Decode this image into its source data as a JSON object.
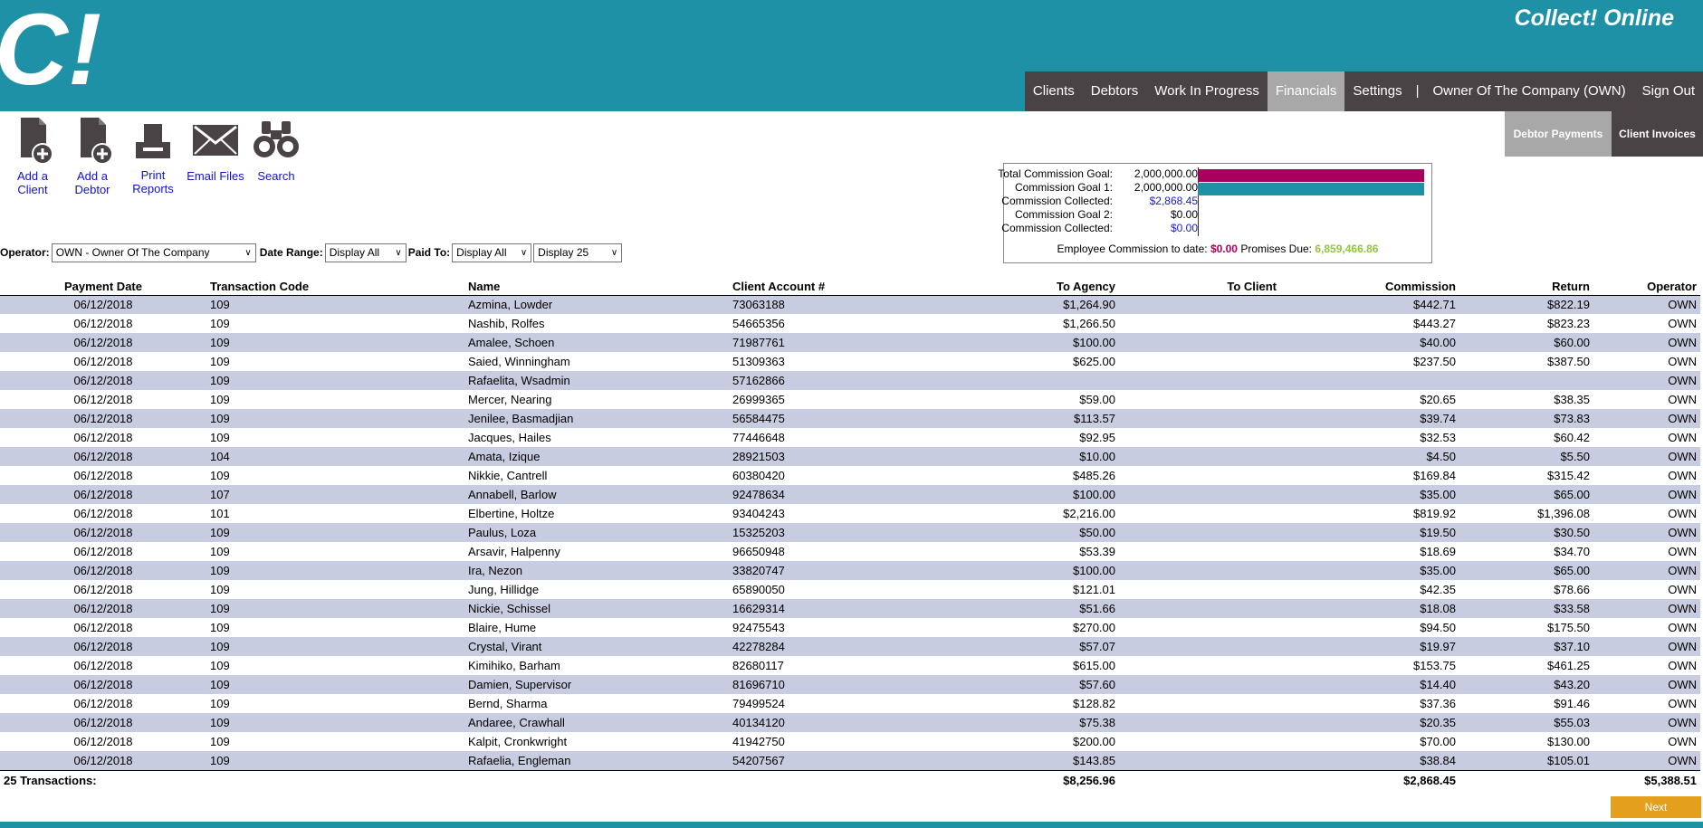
{
  "header": {
    "brand": "Collect! Online",
    "nav": [
      {
        "label": "Clients"
      },
      {
        "label": "Debtors"
      },
      {
        "label": "Work In Progress"
      },
      {
        "label": "Financials"
      },
      {
        "label": "Settings"
      },
      {
        "label": "|"
      },
      {
        "label": "Owner Of The Company (OWN)"
      },
      {
        "label": "Sign Out"
      }
    ],
    "active_nav": "Financials",
    "colors": {
      "brand": "#1f91a7",
      "nav_bg": "#4a4345",
      "active": "#a8a8a8"
    }
  },
  "subnav": {
    "debtor_payments": "Debtor Payments",
    "client_invoices": "Client Invoices"
  },
  "toolbar": {
    "add_client": "Add a Client",
    "add_debtor": "Add a Debtor",
    "print_reports": "Print Reports",
    "email_files": "Email Files",
    "search": "Search",
    "icons": [
      "document-add-icon",
      "document-add-icon",
      "printer-icon",
      "envelope-icon",
      "binoculars-icon"
    ]
  },
  "commission": {
    "total_goal_label": "Total Commission Goal:",
    "total_goal_value": "2,000,000.00",
    "goal1_label": "Commission Goal 1:",
    "goal1_value": "2,000,000.00",
    "collected1_label": "Commission Collected:",
    "collected1_value": "$2,868.45",
    "goal2_label": "Commission Goal 2:",
    "goal2_value": "$0.00",
    "collected2_label": "Commission Collected:",
    "collected2_value": "$0.00",
    "employee_label": "Employee Commission to date:",
    "employee_value": "$0.00",
    "promises_label": "Promises Due:",
    "promises_value": "6,859,466.86",
    "bar_colors": {
      "total": "#a8005c",
      "goal1": "#1f91a7"
    }
  },
  "filters": {
    "operator_label": "Operator:",
    "operator_value": "OWN - Owner Of The Company",
    "date_range_label": "Date Range:",
    "date_range_value": "Display All",
    "paid_to_label": "Paid To:",
    "paid_to_value": "Display All",
    "display_value": "Display 25"
  },
  "table": {
    "headers": [
      "Payment Date",
      "Transaction Code",
      "Name",
      "Client Account #",
      "To Agency",
      "To Client",
      "Commission",
      "Return",
      "Operator"
    ],
    "rows": [
      [
        "06/12/2018",
        "109",
        "Azmina, Lowder",
        "73063188",
        "$1,264.90",
        "",
        "$442.71",
        "$822.19",
        "OWN"
      ],
      [
        "06/12/2018",
        "109",
        "Nashib, Rolfes",
        "54665356",
        "$1,266.50",
        "",
        "$443.27",
        "$823.23",
        "OWN"
      ],
      [
        "06/12/2018",
        "109",
        "Amalee, Schoen",
        "71987761",
        "$100.00",
        "",
        "$40.00",
        "$60.00",
        "OWN"
      ],
      [
        "06/12/2018",
        "109",
        "Saied, Winningham",
        "51309363",
        "$625.00",
        "",
        "$237.50",
        "$387.50",
        "OWN"
      ],
      [
        "06/12/2018",
        "109",
        "Rafaelita, Wsadmin",
        "57162866",
        "",
        "",
        "",
        "",
        "OWN"
      ],
      [
        "06/12/2018",
        "109",
        "Mercer, Nearing",
        "26999365",
        "$59.00",
        "",
        "$20.65",
        "$38.35",
        "OWN"
      ],
      [
        "06/12/2018",
        "109",
        "Jenilee, Basmadjian",
        "56584475",
        "$113.57",
        "",
        "$39.74",
        "$73.83",
        "OWN"
      ],
      [
        "06/12/2018",
        "109",
        "Jacques, Hailes",
        "77446648",
        "$92.95",
        "",
        "$32.53",
        "$60.42",
        "OWN"
      ],
      [
        "06/12/2018",
        "104",
        "Amata, Izique",
        "28921503",
        "$10.00",
        "",
        "$4.50",
        "$5.50",
        "OWN"
      ],
      [
        "06/12/2018",
        "109",
        "Nikkie, Cantrell",
        "60380420",
        "$485.26",
        "",
        "$169.84",
        "$315.42",
        "OWN"
      ],
      [
        "06/12/2018",
        "107",
        "Annabell, Barlow",
        "92478634",
        "$100.00",
        "",
        "$35.00",
        "$65.00",
        "OWN"
      ],
      [
        "06/12/2018",
        "101",
        "Elbertine, Holtze",
        "93404243",
        "$2,216.00",
        "",
        "$819.92",
        "$1,396.08",
        "OWN"
      ],
      [
        "06/12/2018",
        "109",
        "Paulus, Loza",
        "15325203",
        "$50.00",
        "",
        "$19.50",
        "$30.50",
        "OWN"
      ],
      [
        "06/12/2018",
        "109",
        "Arsavir, Halpenny",
        "96650948",
        "$53.39",
        "",
        "$18.69",
        "$34.70",
        "OWN"
      ],
      [
        "06/12/2018",
        "109",
        "Ira, Nezon",
        "33820747",
        "$100.00",
        "",
        "$35.00",
        "$65.00",
        "OWN"
      ],
      [
        "06/12/2018",
        "109",
        "Jung, Hillidge",
        "65890050",
        "$121.01",
        "",
        "$42.35",
        "$78.66",
        "OWN"
      ],
      [
        "06/12/2018",
        "109",
        "Nickie, Schissel",
        "16629314",
        "$51.66",
        "",
        "$18.08",
        "$33.58",
        "OWN"
      ],
      [
        "06/12/2018",
        "109",
        "Blaire, Hume",
        "92475543",
        "$270.00",
        "",
        "$94.50",
        "$175.50",
        "OWN"
      ],
      [
        "06/12/2018",
        "109",
        "Crystal, Virant",
        "42278284",
        "$57.07",
        "",
        "$19.97",
        "$37.10",
        "OWN"
      ],
      [
        "06/12/2018",
        "109",
        "Kimihiko, Barham",
        "82680117",
        "$615.00",
        "",
        "$153.75",
        "$461.25",
        "OWN"
      ],
      [
        "06/12/2018",
        "109",
        "Damien, Supervisor",
        "81696710",
        "$57.60",
        "",
        "$14.40",
        "$43.20",
        "OWN"
      ],
      [
        "06/12/2018",
        "109",
        "Bernd, Sharma",
        "79499524",
        "$128.82",
        "",
        "$37.36",
        "$91.46",
        "OWN"
      ],
      [
        "06/12/2018",
        "109",
        "Andaree, Crawhall",
        "40134120",
        "$75.38",
        "",
        "$20.35",
        "$55.03",
        "OWN"
      ],
      [
        "06/12/2018",
        "109",
        "Kalpit, Cronkwright",
        "41942750",
        "$200.00",
        "",
        "$70.00",
        "$130.00",
        "OWN"
      ],
      [
        "06/12/2018",
        "109",
        "Rafaelia, Engleman",
        "54207567",
        "$143.85",
        "",
        "$38.84",
        "$105.01",
        "OWN"
      ]
    ],
    "footer": {
      "count_label": "25 Transactions:",
      "to_agency_total": "$8,256.96",
      "commission_total": "$2,868.45",
      "return_total": "$5,388.51"
    }
  },
  "pagination": {
    "next_label": "Next"
  }
}
